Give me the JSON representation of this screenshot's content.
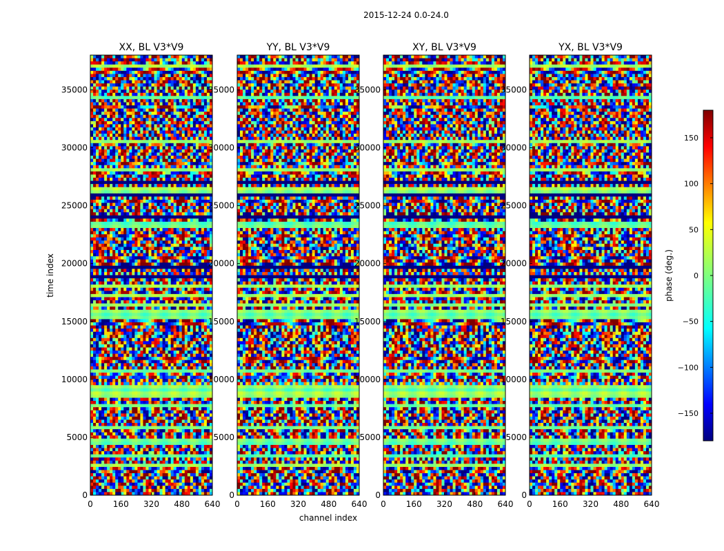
{
  "chart_data": {
    "type": "heatmap",
    "suptitle": "2015-12-24 0.0-24.0",
    "xlabel": "channel index",
    "ylabel": "time index",
    "xlim": [
      0,
      640
    ],
    "ylim": [
      0,
      38000
    ],
    "xticks": [
      0,
      160,
      320,
      480,
      640
    ],
    "yticks": [
      0,
      5000,
      10000,
      15000,
      20000,
      25000,
      30000,
      35000
    ],
    "panels": [
      {
        "name": "XX",
        "title": "XX, BL V3*V9"
      },
      {
        "name": "YY",
        "title": "YY, BL V3*V9"
      },
      {
        "name": "XY",
        "title": "XY, BL V3*V9"
      },
      {
        "name": "YX",
        "title": "YX, BL V3*V9"
      }
    ],
    "colorbar": {
      "label": "phase (deg.)",
      "range": [
        -180,
        180
      ],
      "ticks": [
        -150,
        -100,
        -50,
        0,
        50,
        100,
        150
      ],
      "colormap": "jet"
    }
  }
}
